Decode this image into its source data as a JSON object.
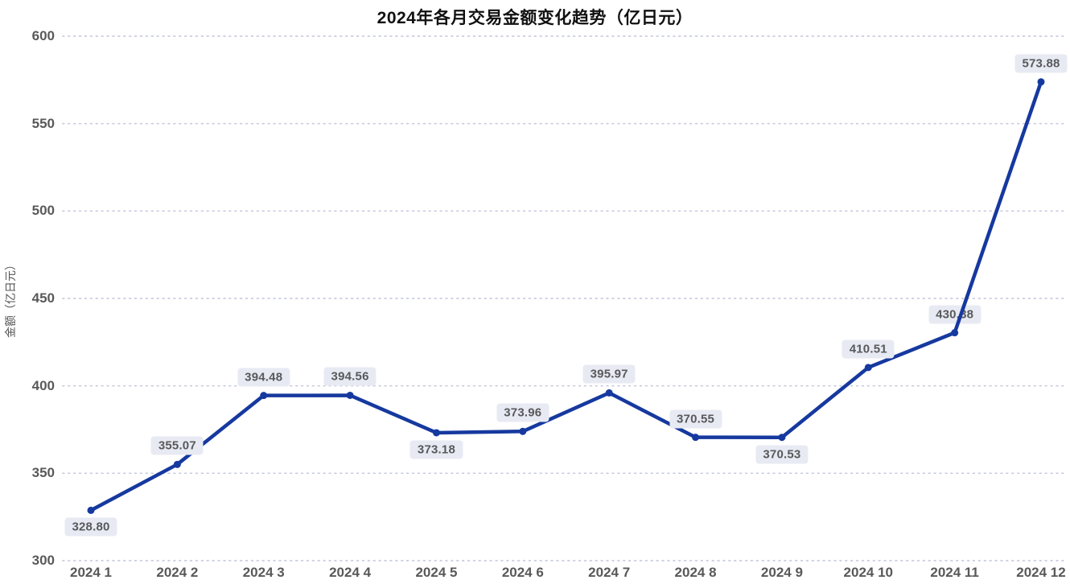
{
  "chart_data": {
    "type": "line",
    "title": "2024年各月交易金额变化趋势（亿日元）",
    "ylabel": "金额（亿日元）",
    "xlabel": "",
    "categories": [
      "2024 1",
      "2024 2",
      "2024 3",
      "2024 4",
      "2024 5",
      "2024 6",
      "2024 7",
      "2024 8",
      "2024 9",
      "2024 10",
      "2024 11",
      "2024 12"
    ],
    "values": [
      328.8,
      355.07,
      394.48,
      394.56,
      373.18,
      373.96,
      395.97,
      370.55,
      370.53,
      410.51,
      430.38,
      573.88
    ],
    "value_labels": [
      "328.80",
      "355.07",
      "394.48",
      "394.56",
      "373.18",
      "373.96",
      "395.97",
      "370.55",
      "370.53",
      "410.51",
      "430.38",
      "573.88"
    ],
    "label_positions": [
      "below",
      "above",
      "above",
      "above",
      "below",
      "above",
      "above",
      "above",
      "below",
      "above",
      "above",
      "above"
    ],
    "label_behind_line": [
      false,
      false,
      false,
      false,
      false,
      false,
      false,
      false,
      false,
      false,
      true,
      false
    ],
    "y_ticks": [
      300,
      350,
      400,
      450,
      500,
      550,
      600
    ],
    "ylim": [
      300,
      600
    ],
    "grid": "horizontal-dotted",
    "legend": "none",
    "colors": {
      "line": "#16399f",
      "marker": "#16399f",
      "label_bg": "#e8eaf3",
      "label_text": "#58595b",
      "axis_text": "#595959",
      "grid": "#c7cae0",
      "title": "#111111"
    }
  }
}
